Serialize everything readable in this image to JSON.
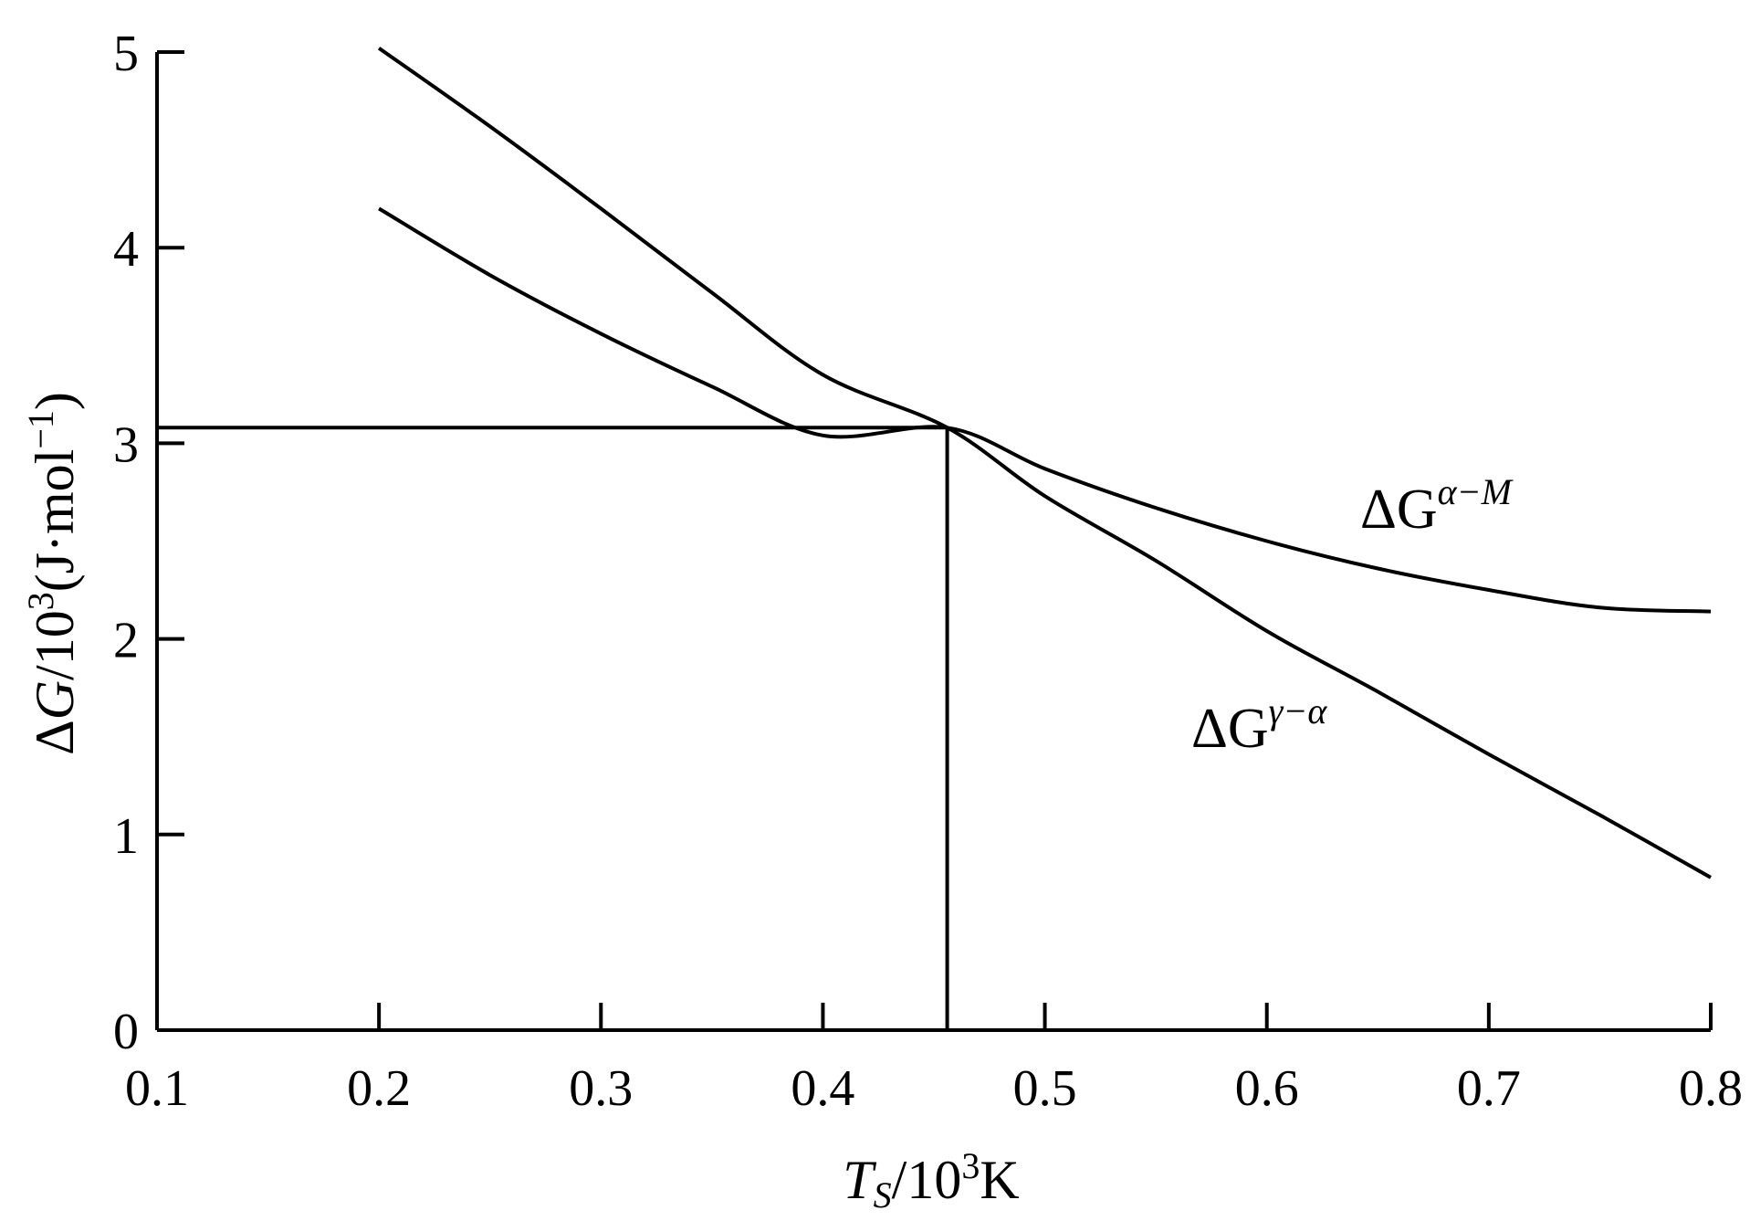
{
  "chart_data": {
    "type": "line",
    "xlabel": {
      "var": "T",
      "sub": "S",
      "pre": "/10",
      "exp": "3",
      "post": "K"
    },
    "ylabel": {
      "pre": "Δ",
      "var": "G",
      "mid": "/10",
      "exp": "3",
      "post": "(J·mol",
      "exp2": "−1",
      "end": ")"
    },
    "xlim": [
      0.1,
      0.8
    ],
    "ylim": [
      0,
      5
    ],
    "xticks": [
      "0.1",
      "0.2",
      "0.3",
      "0.4",
      "0.5",
      "0.6",
      "0.7",
      "0.8"
    ],
    "yticks": [
      "0",
      "1",
      "2",
      "3",
      "4",
      "5"
    ],
    "grid": false,
    "series": [
      {
        "name": "ΔG^α−M",
        "label": {
          "base": "ΔG",
          "sup": "α−M"
        },
        "x": [
          0.2,
          0.25,
          0.3,
          0.35,
          0.4,
          0.456,
          0.5,
          0.55,
          0.6,
          0.65,
          0.7,
          0.75,
          0.8
        ],
        "y": [
          4.2,
          3.86,
          3.56,
          3.29,
          3.04,
          3.08,
          2.87,
          2.67,
          2.5,
          2.36,
          2.25,
          2.16,
          2.14
        ]
      },
      {
        "name": "ΔG^γ−α",
        "label": {
          "base": "ΔG",
          "sup": "γ−α"
        },
        "x": [
          0.2,
          0.25,
          0.3,
          0.35,
          0.4,
          0.456,
          0.5,
          0.55,
          0.6,
          0.65,
          0.7,
          0.75,
          0.8
        ],
        "y": [
          5.02,
          4.62,
          4.2,
          3.77,
          3.35,
          3.08,
          2.73,
          2.4,
          2.04,
          1.73,
          1.41,
          1.1,
          0.78
        ]
      }
    ],
    "reference_lines": {
      "x": 0.456,
      "y": 3.08
    }
  }
}
